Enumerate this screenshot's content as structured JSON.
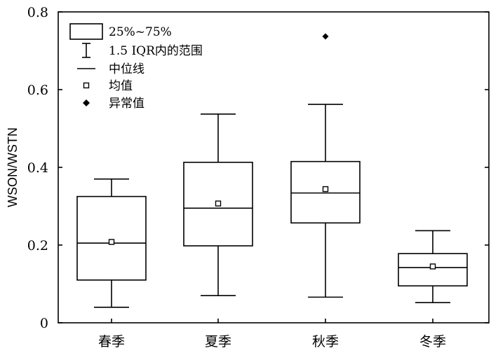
{
  "chart_data": {
    "type": "boxplot",
    "ylabel": "WSON/WSTN",
    "xlabel": "",
    "ylim": [
      0,
      0.8
    ],
    "yticks": [
      "0",
      "0.2",
      "0.4",
      "0.6",
      "0.8"
    ],
    "grid": false,
    "legend_position": "top-left",
    "categories": [
      "春季",
      "夏季",
      "秋季",
      "冬季"
    ],
    "boxes": [
      {
        "category": "春季",
        "whisker_low": 0.04,
        "q1": 0.11,
        "median": 0.205,
        "q3": 0.325,
        "whisker_high": 0.37,
        "mean": 0.208,
        "outliers": []
      },
      {
        "category": "夏季",
        "whisker_low": 0.07,
        "q1": 0.198,
        "median": 0.295,
        "q3": 0.413,
        "whisker_high": 0.537,
        "mean": 0.307,
        "outliers": []
      },
      {
        "category": "秋季",
        "whisker_low": 0.066,
        "q1": 0.257,
        "median": 0.334,
        "q3": 0.415,
        "whisker_high": 0.562,
        "mean": 0.344,
        "outliers": [
          0.737
        ]
      },
      {
        "category": "冬季",
        "whisker_low": 0.052,
        "q1": 0.095,
        "median": 0.142,
        "q3": 0.178,
        "whisker_high": 0.237,
        "mean": 0.145,
        "outliers": []
      }
    ],
    "legend": [
      {
        "symbol": "box",
        "label": "25%~75%"
      },
      {
        "symbol": "whisker",
        "label": "1.5 IQR内的范围"
      },
      {
        "symbol": "line",
        "label": "中位线"
      },
      {
        "symbol": "open-square",
        "label": "均值"
      },
      {
        "symbol": "filled-diamond",
        "label": "异常值"
      }
    ]
  }
}
